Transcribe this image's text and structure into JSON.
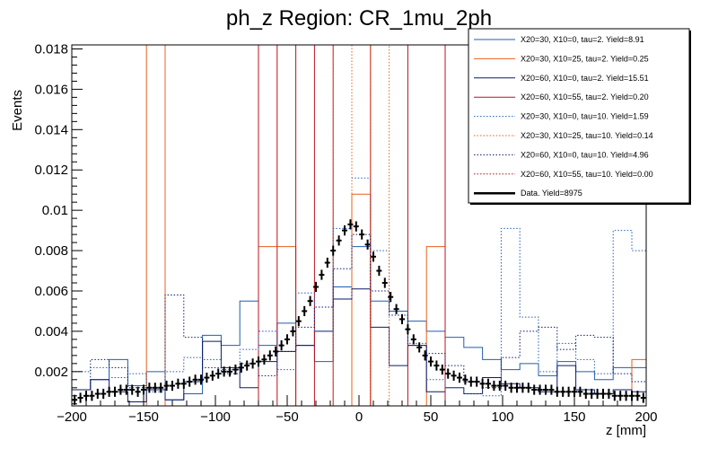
{
  "chart_data": {
    "type": "histogram",
    "title": "ph_z Region: CR_1mu_2ph",
    "xlabel": "z [mm]",
    "ylabel": "Events",
    "xlim": [
      -200,
      200
    ],
    "ylim": [
      0.0003,
      0.0182
    ],
    "x_ticks": [
      -200,
      -150,
      -100,
      -50,
      0,
      50,
      100,
      150,
      200
    ],
    "y_ticks": [
      0.002,
      0.004,
      0.006,
      0.008,
      0.01,
      0.012,
      0.014,
      0.016,
      0.018
    ],
    "y_tick_labels": [
      "0.002",
      "0.004",
      "0.006",
      "0.008",
      "0.01",
      "0.012",
      "0.014",
      "0.016",
      "0.018"
    ],
    "x_tick_labels": [
      "−200",
      "−150",
      "−100",
      "−50",
      "0",
      "50",
      "100",
      "150",
      "200"
    ],
    "bin_edges": [
      -200,
      -187,
      -174,
      -161,
      -148,
      -135,
      -122,
      -109,
      -96,
      -83,
      -70,
      -57,
      -44,
      -31,
      -18,
      -5,
      8,
      21,
      34,
      47,
      60,
      73,
      86,
      99,
      112,
      125,
      138,
      151,
      164,
      177,
      190,
      200
    ],
    "series": [
      {
        "name": "X20=30, X10=0, tau=2. Yield=8.91",
        "color": "#1f5fb4",
        "dash": false,
        "values": [
          0.0011,
          0.0016,
          0.0026,
          0.0013,
          0.002,
          0.0006,
          0.0009,
          0.0038,
          0.0033,
          0.0055,
          0.0033,
          0.0044,
          0.0033,
          0.0025,
          0.0062,
          0.0082,
          0.0055,
          0.005,
          0.0045,
          0.004,
          0.0037,
          0.0032,
          0.0026,
          0.0021,
          0.0024,
          0.0018,
          0.0025,
          0.002,
          0.0016,
          0.0022,
          0.0022
        ]
      },
      {
        "name": "X20=30, X10=25, tau=2. Yield=0.25",
        "color": "#e8601c",
        "dash": false,
        "values": [
          0.0003,
          0.0003,
          0.0003,
          0.0003,
          0.0182,
          0.0003,
          0.0003,
          0.0003,
          0.0003,
          0.0003,
          0.0082,
          0.0082,
          0.0003,
          0.0003,
          0.0003,
          0.0108,
          0.0003,
          0.0003,
          0.0003,
          0.0082,
          0.0003,
          0.0003,
          0.0003,
          0.0003,
          0.0003,
          0.0003,
          0.0003,
          0.0003,
          0.0003,
          0.0003,
          0.0026
        ]
      },
      {
        "name": "X20=60, X10=0, tau=2. Yield=15.51",
        "color": "#0a1a6b",
        "dash": false,
        "values": [
          0.0011,
          0.0016,
          0.001,
          0.0005,
          0.0011,
          0.0006,
          0.0015,
          0.0035,
          0.0022,
          0.0012,
          0.0025,
          0.003,
          0.0033,
          0.004,
          0.0056,
          0.0061,
          0.0042,
          0.0023,
          0.0033,
          0.001,
          0.0012,
          0.0009,
          0.0017,
          0.0014,
          0.0012,
          0.001,
          0.0023,
          0.0011,
          0.0009,
          0.0011,
          0.001
        ]
      },
      {
        "name": "X20=60, X10=55, tau=2. Yield=0.20",
        "color": "#b8141e",
        "dash": false,
        "values": [
          0.0003,
          0.0003,
          0.0003,
          0.0003,
          0.0003,
          0.0003,
          0.0003,
          0.0003,
          0.0003,
          0.0003,
          0.0182,
          0.0003,
          0.0182,
          0.0003,
          0.0182,
          0.0182,
          0.0003,
          0.0003,
          0.0182,
          0.0182,
          0.0003,
          0.0003,
          0.0003,
          0.0003,
          0.0003,
          0.0003,
          0.0003,
          0.0003,
          0.0003,
          0.0003,
          0.0003
        ]
      },
      {
        "name": "X20=30, X10=0, tau=10. Yield=1.59",
        "color": "#1f5fb4",
        "dash": true,
        "values": [
          0.002,
          0.0022,
          0.0017,
          0.0019,
          0.001,
          0.002,
          0.0027,
          0.0026,
          0.0021,
          0.0031,
          0.004,
          0.0021,
          0.0059,
          0.004,
          0.0091,
          0.0116,
          0.008,
          0.005,
          0.0034,
          0.0016,
          0.0012,
          0.0009,
          0.0008,
          0.0091,
          0.0047,
          0.002,
          0.0034,
          0.0026,
          0.0019,
          0.009,
          0.008
        ]
      },
      {
        "name": "X20=30, X10=25, tau=10. Yield=0.14",
        "color": "#e8601c",
        "dash": true,
        "values": [
          0.0003,
          0.0003,
          0.0003,
          0.0003,
          0.0003,
          0.0003,
          0.0003,
          0.0003,
          0.0003,
          0.0003,
          0.0003,
          0.0003,
          0.0003,
          0.0003,
          0.0182,
          0.0003,
          0.0182,
          0.0003,
          0.0003,
          0.0003,
          0.0003,
          0.0003,
          0.0003,
          0.0003,
          0.0003,
          0.0003,
          0.0003,
          0.0003,
          0.0003,
          0.0003,
          0.0003
        ]
      },
      {
        "name": "X20=60, X10=0, tau=10. Yield=4.96",
        "color": "#0a1a6b",
        "dash": true,
        "values": [
          0.0011,
          0.0026,
          0.0022,
          0.0012,
          0.0011,
          0.0058,
          0.0037,
          0.0022,
          0.0019,
          0.0024,
          0.0018,
          0.003,
          0.0042,
          0.0052,
          0.0071,
          0.0088,
          0.006,
          0.0048,
          0.0033,
          0.0029,
          0.0023,
          0.0015,
          0.0012,
          0.0027,
          0.004,
          0.0042,
          0.0031,
          0.0038,
          0.0037,
          0.0019,
          0.0015
        ]
      },
      {
        "name": "X20=60, X10=55, tau=10. Yield=0.00",
        "color": "#b8141e",
        "dash": true,
        "values": [
          0.0003,
          0.0003,
          0.0003,
          0.0003,
          0.0003,
          0.0003,
          0.0003,
          0.0003,
          0.0003,
          0.0003,
          0.0003,
          0.0003,
          0.0003,
          0.0003,
          0.0003,
          0.0003,
          0.0003,
          0.0003,
          0.0003,
          0.0003,
          0.0003,
          0.0003,
          0.0003,
          0.0003,
          0.0003,
          0.0003,
          0.0003,
          0.0003,
          0.0003,
          0.0003,
          0.0003
        ]
      }
    ],
    "data_series": {
      "name": "Data. Yield=8975",
      "color": "#000000",
      "x": [
        -198,
        -194,
        -190,
        -186,
        -182,
        -178,
        -174,
        -170,
        -166,
        -162,
        -158,
        -154,
        -150,
        -146,
        -142,
        -138,
        -134,
        -130,
        -126,
        -122,
        -118,
        -114,
        -110,
        -106,
        -102,
        -98,
        -94,
        -90,
        -86,
        -82,
        -78,
        -74,
        -70,
        -66,
        -62,
        -58,
        -54,
        -50,
        -46,
        -42,
        -38,
        -34,
        -30,
        -26,
        -22,
        -18,
        -14,
        -10,
        -6,
        -2,
        2,
        6,
        10,
        14,
        18,
        22,
        26,
        30,
        34,
        38,
        42,
        46,
        50,
        54,
        58,
        62,
        66,
        70,
        74,
        78,
        82,
        86,
        90,
        94,
        98,
        102,
        106,
        110,
        114,
        118,
        122,
        126,
        130,
        134,
        138,
        142,
        146,
        150,
        154,
        158,
        162,
        166,
        170,
        174,
        178,
        182,
        186,
        190,
        194,
        198
      ],
      "y": [
        0.0006,
        0.0007,
        0.0008,
        0.0008,
        0.0009,
        0.0009,
        0.001,
        0.001,
        0.0011,
        0.0011,
        0.0011,
        0.001,
        0.0011,
        0.0012,
        0.0012,
        0.0012,
        0.0013,
        0.0013,
        0.0014,
        0.0014,
        0.0015,
        0.0016,
        0.0016,
        0.0017,
        0.0018,
        0.0019,
        0.002,
        0.002,
        0.0021,
        0.0022,
        0.0023,
        0.0024,
        0.0025,
        0.0026,
        0.0028,
        0.003,
        0.0033,
        0.0036,
        0.004,
        0.0045,
        0.005,
        0.0055,
        0.0062,
        0.0068,
        0.0074,
        0.008,
        0.0085,
        0.009,
        0.0093,
        0.0092,
        0.0088,
        0.0083,
        0.0077,
        0.007,
        0.0064,
        0.0057,
        0.0051,
        0.0046,
        0.0041,
        0.0036,
        0.0032,
        0.0028,
        0.0025,
        0.0023,
        0.0021,
        0.0019,
        0.0018,
        0.0017,
        0.0016,
        0.0015,
        0.0015,
        0.0014,
        0.0014,
        0.0013,
        0.0013,
        0.0013,
        0.0012,
        0.0012,
        0.0012,
        0.0012,
        0.0011,
        0.0011,
        0.0011,
        0.0011,
        0.001,
        0.001,
        0.001,
        0.001,
        0.001,
        0.0009,
        0.0009,
        0.0009,
        0.0009,
        0.0009,
        0.0008,
        0.0008,
        0.0008,
        0.0008,
        0.0008,
        0.0007
      ]
    },
    "legend_position": "top-right"
  }
}
